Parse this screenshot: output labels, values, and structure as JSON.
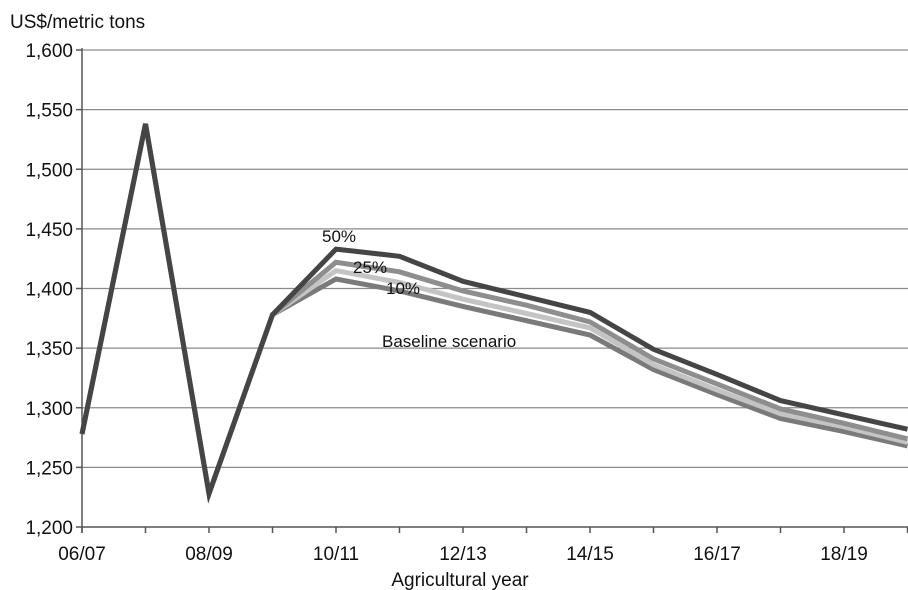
{
  "chart_data": {
    "type": "line",
    "title": "",
    "ylabel": "US$/metric tons",
    "xlabel": "Agricultural year",
    "ylim": [
      1200,
      1600
    ],
    "ytick_values": [
      1200,
      1250,
      1300,
      1350,
      1400,
      1450,
      1500,
      1550,
      1600
    ],
    "ytick_labels": [
      "1,200",
      "1,250",
      "1,300",
      "1,350",
      "1,400",
      "1,450",
      "1,500",
      "1,550",
      "1,600"
    ],
    "categories": [
      "06/07",
      "07/08",
      "08/09",
      "09/10",
      "10/11",
      "11/12",
      "12/13",
      "13/14",
      "14/15",
      "15/16",
      "16/17",
      "17/18",
      "18/19",
      "19/20"
    ],
    "xtick_labels_shown": [
      "06/07",
      "08/09",
      "10/11",
      "12/13",
      "14/15",
      "16/17",
      "18/19"
    ],
    "grid": true,
    "series": [
      {
        "name": "Baseline scenario",
        "color": "#7a7a7a",
        "values": [
          1278,
          1538,
          1228,
          1378,
          1408,
          1398,
          1385,
          1373,
          1361,
          1332,
          1311,
          1291,
          1280,
          1268
        ]
      },
      {
        "name": "10%",
        "color": "#c4c4c4",
        "values": [
          1278,
          1538,
          1228,
          1378,
          1415,
          1405,
          1391,
          1379,
          1367,
          1336,
          1315,
          1295,
          1284,
          1271
        ]
      },
      {
        "name": "25%",
        "color": "#8e8e8e",
        "values": [
          1278,
          1538,
          1228,
          1378,
          1422,
          1414,
          1398,
          1386,
          1372,
          1341,
          1320,
          1299,
          1287,
          1274
        ]
      },
      {
        "name": "50%",
        "color": "#454545",
        "values": [
          1278,
          1538,
          1228,
          1378,
          1433,
          1427,
          1406,
          1393,
          1380,
          1349,
          1328,
          1306,
          1294,
          1282
        ]
      }
    ]
  }
}
